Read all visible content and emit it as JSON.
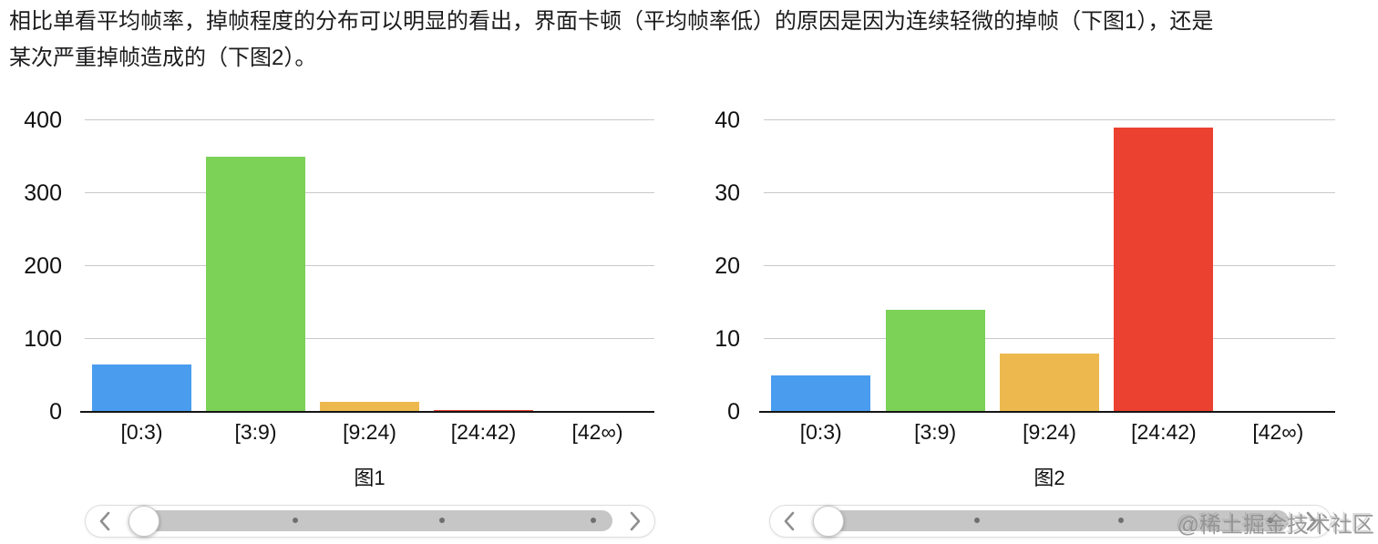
{
  "paragraph": {
    "line1": "相比单看平均帧率，掉帧程度的分布可以明显的看出，界面卡顿（平均帧率低）的原因是因为连续轻微的掉帧（下图1），还是",
    "line2": "某次严重掉帧造成的（下图2）。"
  },
  "chart_data": [
    {
      "type": "bar",
      "caption": "图1",
      "categories": [
        "[0:3)",
        "[3:9)",
        "[9:24)",
        "[24:42)",
        "[42∞)"
      ],
      "values": [
        65,
        350,
        14,
        3,
        0
      ],
      "bar_colors": [
        "#4A9CEF",
        "#7CD157",
        "#EDB94E",
        "#EB4130",
        "#4A9CEF"
      ],
      "ylim": [
        0,
        400
      ],
      "yticks": [
        0,
        100,
        200,
        300,
        400
      ],
      "grid": "horizontal",
      "legend": "none"
    },
    {
      "type": "bar",
      "caption": "图2",
      "categories": [
        "[0:3)",
        "[3:9)",
        "[9:24)",
        "[24:42)",
        "[42∞)"
      ],
      "values": [
        5,
        14,
        8,
        39,
        0
      ],
      "bar_colors": [
        "#4A9CEF",
        "#7CD157",
        "#EDB94E",
        "#EB4130",
        "#4A9CEF"
      ],
      "ylim": [
        0,
        40
      ],
      "yticks": [
        0,
        10,
        20,
        30,
        40
      ],
      "grid": "horizontal",
      "legend": "none"
    }
  ],
  "watermark": "@稀土掘金技术社区",
  "colors": {
    "blue": "#4A9CEF",
    "green": "#7CD157",
    "yellow": "#EDB94E",
    "red": "#EB4130",
    "gridline": "#C9C9C9",
    "axis": "#151515"
  }
}
